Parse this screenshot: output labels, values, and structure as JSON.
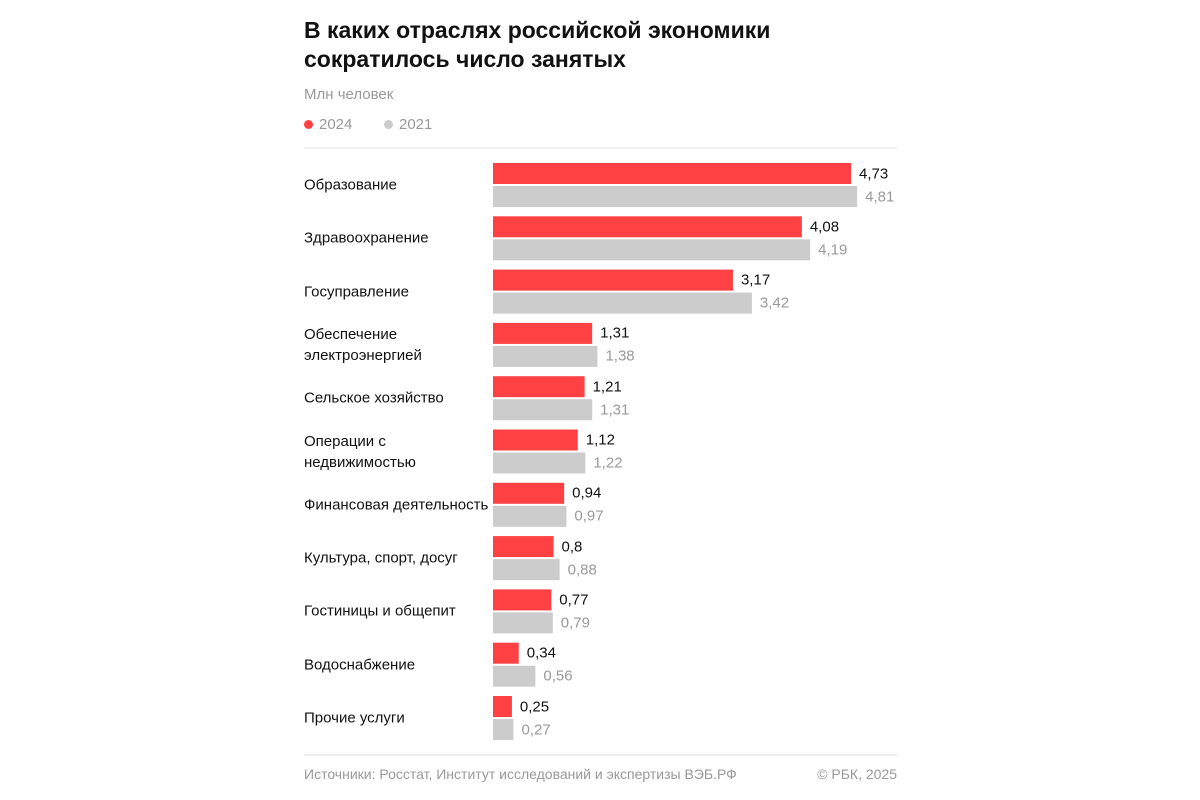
{
  "chart_data": {
    "type": "bar",
    "orientation": "horizontal",
    "title": "В каких отраслях российской экономики\nсократилось число занятых",
    "subtitle": "Млн человек",
    "categories": [
      "Образование",
      "Здравоохранение",
      "Госуправление",
      "Обеспечение\nэлектроэнергией",
      "Сельское хозяйство",
      "Операции\nс недвижимостью",
      "Финансовая\nдеятельность",
      "Культура, спорт, досуг",
      "Гостиницы и общепит",
      "Водоснабжение",
      "Прочие услуги"
    ],
    "series": [
      {
        "name": "2024",
        "color": "#ff4143",
        "label_color": "#111111",
        "values": [
          4.73,
          4.08,
          3.17,
          1.31,
          1.21,
          1.12,
          0.94,
          0.8,
          0.77,
          0.34,
          0.25
        ],
        "value_labels": [
          "4,73",
          "4,08",
          "3,17",
          "1,31",
          "1,21",
          "1,12",
          "0,94",
          "0,8",
          "0,77",
          "0,34",
          "0,25"
        ]
      },
      {
        "name": "2021",
        "color": "#cccccc",
        "label_color": "#999999",
        "values": [
          4.81,
          4.19,
          3.42,
          1.38,
          1.31,
          1.22,
          0.97,
          0.88,
          0.79,
          0.56,
          0.27
        ],
        "value_labels": [
          "4,81",
          "4,19",
          "3,42",
          "1,38",
          "1,31",
          "1,22",
          "0,97",
          "0,88",
          "0,79",
          "0,56",
          "0,27"
        ]
      }
    ],
    "source": "Источники: Росстат, Институт исследований и экспертизы ВЭБ.РФ",
    "credit": "© РБК, 2025"
  }
}
